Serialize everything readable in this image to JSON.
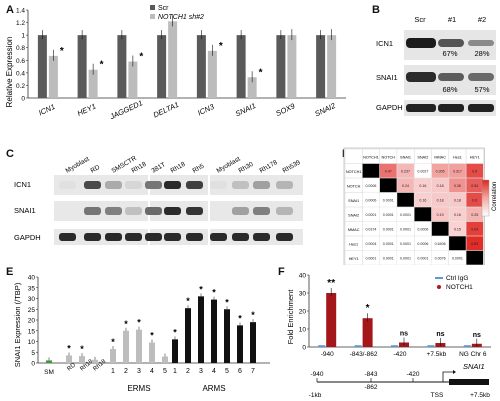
{
  "panels": {
    "A": "A",
    "B": "B",
    "C": "C",
    "D": "D",
    "E": "E",
    "F": "F"
  },
  "panelA": {
    "ylabel": "Relative Expression",
    "legend": [
      "Scr",
      "NOTCH1 sh#2"
    ],
    "chart_data": {
      "type": "bar",
      "categories": [
        "ICN1",
        "HEY1",
        "JAGGED1",
        "DELTA1",
        "ICN3",
        "SNAI1",
        "SOX9",
        "SNAI2"
      ],
      "series": [
        {
          "name": "Scr",
          "values": [
            1.0,
            1.0,
            1.0,
            1.0,
            1.0,
            1.0,
            1.0,
            1.0
          ]
        },
        {
          "name": "NOTCH1 sh#2",
          "values": [
            0.67,
            0.45,
            0.58,
            1.22,
            0.75,
            0.33,
            1.0,
            1.0
          ]
        }
      ],
      "yticks": [
        "0",
        "0.2",
        "0.4",
        "0.6",
        "0.8",
        "1",
        "1.2",
        "1.4"
      ],
      "ylim": [
        0,
        1.4
      ],
      "sig": [
        true,
        true,
        true,
        false,
        true,
        true,
        false,
        false
      ]
    }
  },
  "panelB": {
    "lanes": [
      "Scr",
      "#1",
      "#2"
    ],
    "rows": [
      "ICN1",
      "SNAI1",
      "GAPDH"
    ],
    "icn1_pct": [
      "67%",
      "28%"
    ],
    "snai1_pct": [
      "68%",
      "57%"
    ]
  },
  "panelC": {
    "lanes": [
      "Myoblast",
      "RD",
      "SMSCTR",
      "Rh18",
      "381T",
      "Rh18",
      "Rh5",
      "Myoblast",
      "Rh30",
      "Rh178",
      "Rh539"
    ],
    "rows": [
      "ICN1",
      "SNAI1",
      "GAPDH"
    ]
  },
  "panelD": {
    "headers": [
      "NOTCH1",
      "NOTCH",
      "SNAI1",
      "SNAI2",
      "MMAC",
      "Hes1",
      "HEY1"
    ],
    "matrix": [
      [
        "",
        "0.47",
        "0.237",
        "0.0027",
        "0.305",
        "0.317",
        "0.6"
      ],
      [
        "0.0006",
        "",
        "0.24",
        "0.16",
        "0.18",
        "0.36",
        "0.54"
      ],
      [
        "0.0006",
        "0.0001",
        "",
        "0.16",
        "0.18",
        "0.18",
        "0.6"
      ],
      [
        "0.0001",
        "0.0001",
        "0.0001",
        "",
        "0.19",
        "0.16",
        "0.25"
      ],
      [
        "0.0374",
        "0.0001",
        "0.0001",
        "0.0006",
        "",
        "0.15",
        "0.64"
      ],
      [
        "0.0004",
        "0.0001",
        "0.0001",
        "0.0006",
        "0.6406",
        "",
        "0.83"
      ],
      [
        "0.0001",
        "0.0001",
        "0.0001",
        "0.0001",
        "0.0076",
        "0.0001",
        ""
      ]
    ],
    "colorbar_label": "Correlation"
  },
  "panelE": {
    "ylabel": "SNAI1 Expression (/TBP)",
    "chart_data": {
      "type": "bar",
      "yticks": [
        "0",
        "5",
        "10",
        "15",
        "20",
        "25",
        "30",
        "35",
        "40"
      ],
      "ylim": [
        0,
        40
      ],
      "groups": [
        {
          "name": "SM",
          "values": [
            1.2
          ],
          "labels": [
            "SM"
          ],
          "sig": [
            false
          ],
          "color": "#3a9a3a"
        },
        {
          "name": "lines",
          "values": [
            3.5,
            3.2,
            1.5
          ],
          "labels": [
            "RD",
            "Rh18",
            "Rh18"
          ],
          "sig": [
            true,
            true,
            false
          ],
          "color": "#bdbdbd"
        },
        {
          "name": "ERMS",
          "values": [
            6.5,
            15.0,
            15.5,
            9.5,
            3.0
          ],
          "labels": [
            "1",
            "2",
            "3",
            "4",
            "5"
          ],
          "sig": [
            true,
            true,
            true,
            true,
            false
          ],
          "color": "#bdbdbd"
        },
        {
          "name": "ARMS",
          "values": [
            11.0,
            25.5,
            31.0,
            29.5,
            25.0,
            17.5,
            19.0
          ],
          "labels": [
            "1",
            "2",
            "3",
            "4",
            "5",
            "6",
            "7"
          ],
          "sig": [
            true,
            true,
            true,
            true,
            true,
            true,
            true
          ],
          "color": "#111111"
        }
      ],
      "group_labels": [
        "ERMS",
        "ARMS"
      ]
    }
  },
  "panelF": {
    "ylabel": "Fold Enrichment",
    "legend": [
      "Ctrl IgG",
      "NOTCH1"
    ],
    "chart_data": {
      "type": "bar",
      "categories": [
        "-940",
        "-843/-862",
        "-420",
        "+7.5kb",
        "NG Chr 6"
      ],
      "series": [
        {
          "name": "Ctrl IgG",
          "values": [
            1,
            1,
            1,
            1,
            1
          ]
        },
        {
          "name": "NOTCH1",
          "values": [
            30,
            16,
            2.5,
            2.2,
            1.8
          ]
        }
      ],
      "sig_labels": [
        "**",
        "*",
        "ns",
        "ns",
        "ns"
      ],
      "yticks": [
        "0",
        "10",
        "20",
        "30",
        "40"
      ],
      "ylim": [
        0,
        40
      ]
    },
    "map": {
      "positions_top": [
        "-940",
        "-843",
        "-420"
      ],
      "position_mid": "-862",
      "left": "-1kb",
      "tss": "TSS",
      "right": "+7.5kb",
      "gene": "SNAI1"
    }
  }
}
